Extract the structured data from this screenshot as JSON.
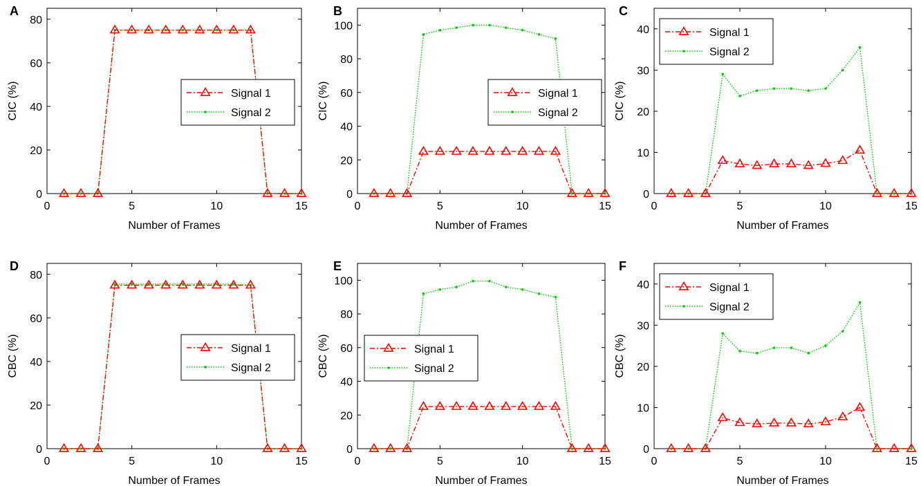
{
  "chart_data": [
    {
      "panel": "A",
      "type": "line",
      "xlabel": "Number of Frames",
      "ylabel": "CIC (%)",
      "xlim": [
        0,
        15
      ],
      "ylim": [
        0,
        85
      ],
      "xticks": [
        0,
        5,
        10,
        15
      ],
      "yticks": [
        0,
        20,
        40,
        60,
        80
      ],
      "legend_position": "middle-right",
      "x": [
        1,
        2,
        3,
        4,
        5,
        6,
        7,
        8,
        9,
        10,
        11,
        12,
        13,
        14,
        15
      ],
      "series": [
        {
          "name": "Signal 1",
          "color": "#ff0000",
          "values": [
            0,
            0,
            0,
            75,
            75,
            75,
            75,
            75,
            75,
            75,
            75,
            75,
            0,
            0,
            0
          ]
        },
        {
          "name": "Signal 2",
          "color": "#00cc00",
          "values": [
            0,
            0,
            0,
            75,
            75,
            75,
            75,
            75,
            75,
            75,
            75,
            75,
            0,
            0,
            0
          ]
        }
      ]
    },
    {
      "panel": "B",
      "type": "line",
      "xlabel": "Number of Frames",
      "ylabel": "CIC (%)",
      "xlim": [
        0,
        15
      ],
      "ylim": [
        0,
        110
      ],
      "xticks": [
        0,
        5,
        10,
        15
      ],
      "yticks": [
        0,
        20,
        40,
        60,
        80,
        100
      ],
      "legend_position": "middle-right",
      "x": [
        1,
        2,
        3,
        4,
        5,
        6,
        7,
        8,
        9,
        10,
        11,
        12,
        13,
        14,
        15
      ],
      "series": [
        {
          "name": "Signal 1",
          "color": "#ff0000",
          "values": [
            0,
            0,
            0,
            25,
            25,
            25,
            25,
            25,
            25,
            25,
            25,
            25,
            0,
            0,
            0
          ]
        },
        {
          "name": "Signal 2",
          "color": "#00cc00",
          "values": [
            0,
            0,
            0,
            94.5,
            97,
            98.5,
            100,
            100,
            98.5,
            97,
            94.5,
            92,
            0,
            0,
            0
          ]
        }
      ]
    },
    {
      "panel": "C",
      "type": "line",
      "xlabel": "Number of Frames",
      "ylabel": "CIC (%)",
      "xlim": [
        0,
        15
      ],
      "ylim": [
        0,
        45
      ],
      "xticks": [
        0,
        5,
        10,
        15
      ],
      "yticks": [
        0,
        10,
        20,
        30,
        40
      ],
      "legend_position": "top-left",
      "x": [
        1,
        2,
        3,
        4,
        5,
        6,
        7,
        8,
        9,
        10,
        11,
        12,
        13,
        14,
        15
      ],
      "series": [
        {
          "name": "Signal 1",
          "color": "#ff0000",
          "values": [
            0,
            0,
            0,
            8,
            7.2,
            6.8,
            7.2,
            7.2,
            6.8,
            7.3,
            8,
            10.5,
            0,
            0,
            0
          ]
        },
        {
          "name": "Signal 2",
          "color": "#00cc00",
          "values": [
            0,
            0,
            0,
            29,
            23.7,
            25,
            25.5,
            25.5,
            25,
            25.5,
            30,
            35.5,
            0,
            0,
            0
          ]
        }
      ]
    },
    {
      "panel": "D",
      "type": "line",
      "xlabel": "Number of Frames",
      "ylabel": "CBC (%)",
      "xlim": [
        0,
        15
      ],
      "ylim": [
        0,
        85
      ],
      "xticks": [
        0,
        5,
        10,
        15
      ],
      "yticks": [
        0,
        20,
        40,
        60,
        80
      ],
      "legend_position": "middle-right",
      "x": [
        1,
        2,
        3,
        4,
        5,
        6,
        7,
        8,
        9,
        10,
        11,
        12,
        13,
        14,
        15
      ],
      "series": [
        {
          "name": "Signal 1",
          "color": "#ff0000",
          "values": [
            0,
            0,
            0,
            75,
            75,
            75,
            75,
            75,
            75,
            75,
            75,
            75,
            0,
            0,
            0
          ]
        },
        {
          "name": "Signal 2",
          "color": "#00cc00",
          "values": [
            0,
            0,
            0,
            75.5,
            75.5,
            75.5,
            75.5,
            75.5,
            75.5,
            75.5,
            75.5,
            75,
            0,
            0,
            0
          ]
        }
      ]
    },
    {
      "panel": "E",
      "type": "line",
      "xlabel": "Number of Frames",
      "ylabel": "CBC (%)",
      "xlim": [
        0,
        15
      ],
      "ylim": [
        0,
        110
      ],
      "xticks": [
        0,
        5,
        10,
        15
      ],
      "yticks": [
        0,
        20,
        40,
        60,
        80,
        100
      ],
      "legend_position": "middle-left",
      "x": [
        1,
        2,
        3,
        4,
        5,
        6,
        7,
        8,
        9,
        10,
        11,
        12,
        13,
        14,
        15
      ],
      "series": [
        {
          "name": "Signal 1",
          "color": "#ff0000",
          "values": [
            0,
            0,
            0,
            25,
            25,
            25,
            25,
            25,
            25,
            25,
            25,
            25,
            0,
            0,
            0
          ]
        },
        {
          "name": "Signal 2",
          "color": "#00cc00",
          "values": [
            0,
            0,
            0,
            92,
            94.5,
            96,
            99.5,
            99.5,
            96,
            94.5,
            92,
            90,
            0,
            0,
            0
          ]
        }
      ]
    },
    {
      "panel": "F",
      "type": "line",
      "xlabel": "Number of Frames",
      "ylabel": "CBC (%)",
      "xlim": [
        0,
        15
      ],
      "ylim": [
        0,
        45
      ],
      "xticks": [
        0,
        5,
        10,
        15
      ],
      "yticks": [
        0,
        10,
        20,
        30,
        40
      ],
      "legend_position": "top-left",
      "x": [
        1,
        2,
        3,
        4,
        5,
        6,
        7,
        8,
        9,
        10,
        11,
        12,
        13,
        14,
        15
      ],
      "series": [
        {
          "name": "Signal 1",
          "color": "#ff0000",
          "values": [
            0,
            0,
            0,
            7.5,
            6.3,
            6,
            6.2,
            6.2,
            6,
            6.5,
            7.7,
            10,
            0,
            0,
            0
          ]
        },
        {
          "name": "Signal 2",
          "color": "#00cc00",
          "values": [
            0,
            0,
            0,
            28,
            23.7,
            23.2,
            24.5,
            24.5,
            23.2,
            25,
            28.5,
            35.5,
            0,
            0,
            0
          ]
        }
      ]
    }
  ]
}
